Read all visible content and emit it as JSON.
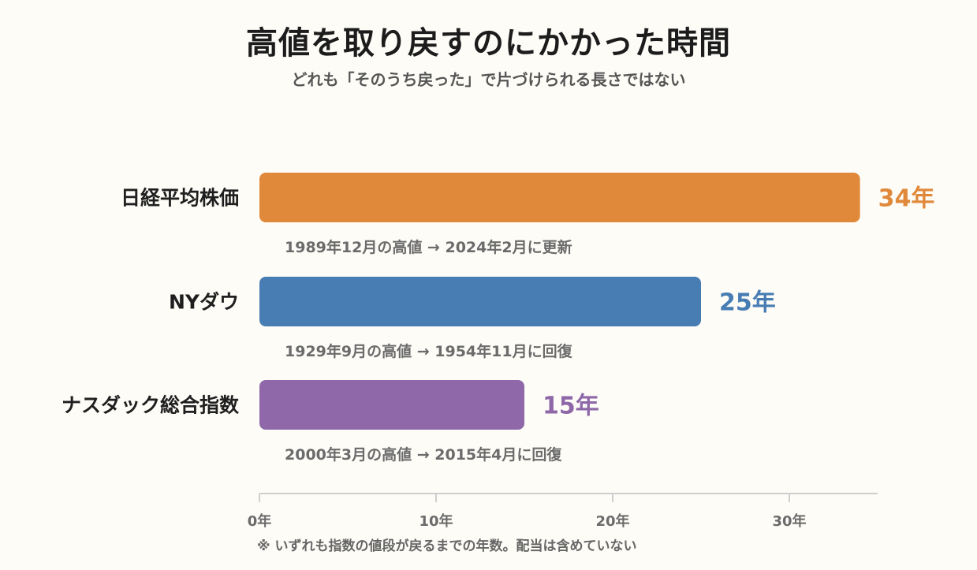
{
  "title": "高値を取り戻すのにかかった時間",
  "subtitle": "どれも「そのうち戻った」で片づけられる長さではない",
  "footnote": "※ いずれも指数の値段が戻るまでの年数。配当は含めていない",
  "chart_data": {
    "type": "bar",
    "orientation": "horizontal",
    "unit": "年",
    "xlim": [
      0,
      35
    ],
    "xticks": [
      0,
      10,
      20,
      30
    ],
    "xtick_labels": [
      "0年",
      "10年",
      "20年",
      "30年"
    ],
    "grid": false,
    "categories": [
      "日経平均株価",
      "NYダウ",
      "ナスダック総合指数"
    ],
    "values": [
      34,
      25,
      15
    ],
    "value_labels": [
      "34年",
      "25年",
      "15年"
    ],
    "annotations": [
      "1989年12月の高値 → 2024年2月に更新",
      "1929年9月の高値 → 1954年11月に回復",
      "2000年3月の高値 → 2015年4月に回復"
    ],
    "colors": [
      "#e0893a",
      "#487db3",
      "#8e68a8"
    ]
  }
}
